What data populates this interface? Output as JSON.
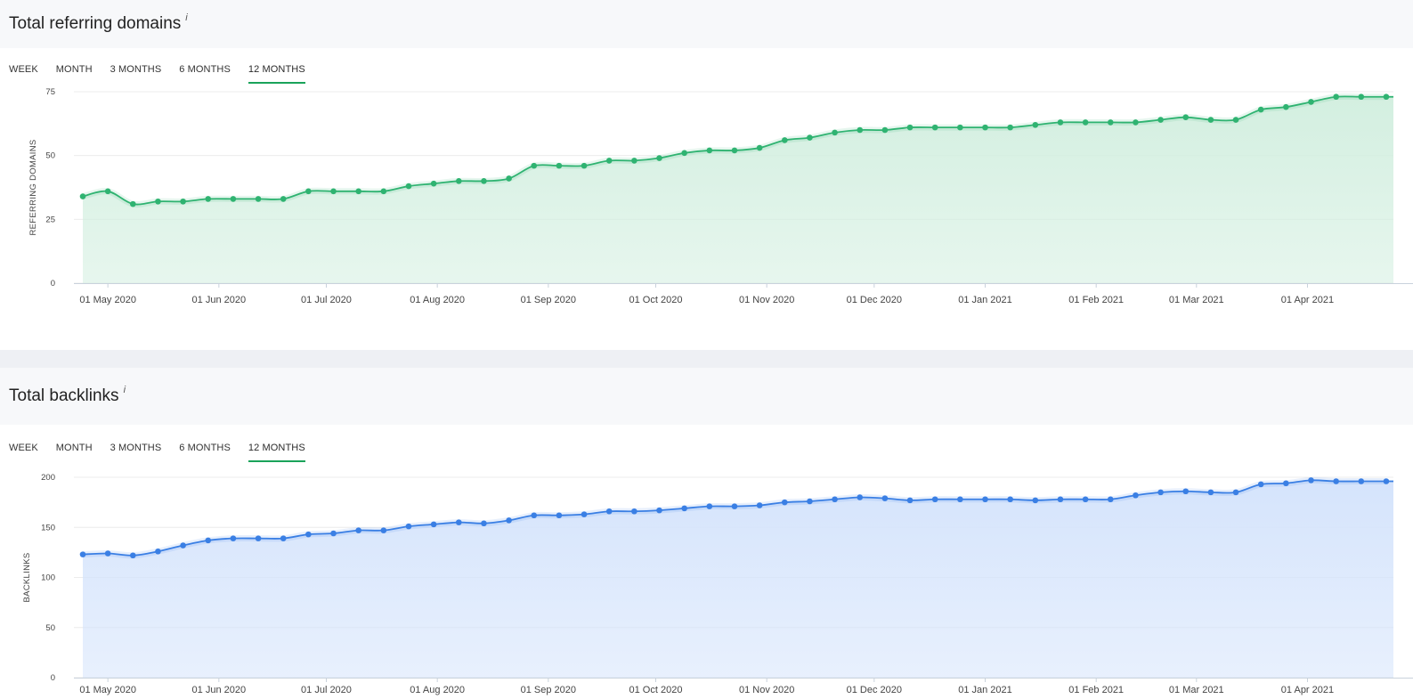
{
  "tabs": [
    "WEEK",
    "MONTH",
    "3 MONTHS",
    "6 MONTHS",
    "12 MONTHS"
  ],
  "active_tab_index": 4,
  "info_icon": "i",
  "colors": {
    "green": "#2fb371",
    "green_fill": "#d3efe0",
    "blue": "#3a7fe4",
    "blue_fill": "#d5e4fc",
    "tab_underline": "#1aa35a"
  },
  "chart_data": [
    {
      "type": "area",
      "title": "Total referring domains",
      "ylabel": "REFERRING DOMAINS",
      "xlabel": "",
      "ylim": [
        0,
        75
      ],
      "yticks": [
        0,
        25,
        50,
        75
      ],
      "x_tick_labels": [
        "01 May 2020",
        "01 Jun 2020",
        "01 Jul 2020",
        "01 Aug 2020",
        "01 Sep 2020",
        "01 Oct 2020",
        "01 Nov 2020",
        "01 Dec 2020",
        "01 Jan 2021",
        "01 Feb 2021",
        "01 Mar 2021",
        "01 Apr 2021"
      ],
      "x_tick_dates": [
        "2020-05-01",
        "2020-06-01",
        "2020-07-01",
        "2020-08-01",
        "2020-09-01",
        "2020-10-01",
        "2020-11-01",
        "2020-12-01",
        "2021-01-01",
        "2021-02-01",
        "2021-03-01",
        "2021-04-01"
      ],
      "x_range": [
        "2020-04-24",
        "2021-04-25"
      ],
      "x": [
        "2020-04-24",
        "2020-05-01",
        "2020-05-08",
        "2020-05-15",
        "2020-05-22",
        "2020-05-29",
        "2020-06-05",
        "2020-06-12",
        "2020-06-19",
        "2020-06-26",
        "2020-07-03",
        "2020-07-10",
        "2020-07-17",
        "2020-07-24",
        "2020-07-31",
        "2020-08-07",
        "2020-08-14",
        "2020-08-21",
        "2020-08-28",
        "2020-09-04",
        "2020-09-11",
        "2020-09-18",
        "2020-09-25",
        "2020-10-02",
        "2020-10-09",
        "2020-10-16",
        "2020-10-23",
        "2020-10-30",
        "2020-11-06",
        "2020-11-13",
        "2020-11-20",
        "2020-11-27",
        "2020-12-04",
        "2020-12-11",
        "2020-12-18",
        "2020-12-25",
        "2021-01-01",
        "2021-01-08",
        "2021-01-15",
        "2021-01-22",
        "2021-01-29",
        "2021-02-05",
        "2021-02-12",
        "2021-02-19",
        "2021-02-26",
        "2021-03-05",
        "2021-03-12",
        "2021-03-19",
        "2021-03-26",
        "2021-04-02",
        "2021-04-09",
        "2021-04-16",
        "2021-04-23"
      ],
      "series": [
        {
          "values": [
            34,
            36,
            31,
            32,
            32,
            33,
            33,
            33,
            33,
            36,
            36,
            36,
            36,
            38,
            39,
            40,
            40,
            41,
            46,
            46,
            46,
            48,
            48,
            49,
            51,
            52,
            52,
            53,
            56,
            57,
            59,
            60,
            60,
            61,
            61,
            61,
            61,
            61,
            62,
            63,
            63,
            63,
            63,
            64,
            65,
            64,
            64,
            68,
            69,
            71,
            73,
            73,
            73
          ]
        }
      ]
    },
    {
      "type": "area",
      "title": "Total backlinks",
      "ylabel": "BACKLINKS",
      "xlabel": "",
      "ylim": [
        0,
        200
      ],
      "yticks": [
        0,
        50,
        100,
        150,
        200
      ],
      "x_tick_labels": [
        "01 May 2020",
        "01 Jun 2020",
        "01 Jul 2020",
        "01 Aug 2020",
        "01 Sep 2020",
        "01 Oct 2020",
        "01 Nov 2020",
        "01 Dec 2020",
        "01 Jan 2021",
        "01 Feb 2021",
        "01 Mar 2021",
        "01 Apr 2021"
      ],
      "x_tick_dates": [
        "2020-05-01",
        "2020-06-01",
        "2020-07-01",
        "2020-08-01",
        "2020-09-01",
        "2020-10-01",
        "2020-11-01",
        "2020-12-01",
        "2021-01-01",
        "2021-02-01",
        "2021-03-01",
        "2021-04-01"
      ],
      "x_range": [
        "2020-04-24",
        "2021-04-25"
      ],
      "x": [
        "2020-04-24",
        "2020-05-01",
        "2020-05-08",
        "2020-05-15",
        "2020-05-22",
        "2020-05-29",
        "2020-06-05",
        "2020-06-12",
        "2020-06-19",
        "2020-06-26",
        "2020-07-03",
        "2020-07-10",
        "2020-07-17",
        "2020-07-24",
        "2020-07-31",
        "2020-08-07",
        "2020-08-14",
        "2020-08-21",
        "2020-08-28",
        "2020-09-04",
        "2020-09-11",
        "2020-09-18",
        "2020-09-25",
        "2020-10-02",
        "2020-10-09",
        "2020-10-16",
        "2020-10-23",
        "2020-10-30",
        "2020-11-06",
        "2020-11-13",
        "2020-11-20",
        "2020-11-27",
        "2020-12-04",
        "2020-12-11",
        "2020-12-18",
        "2020-12-25",
        "2021-01-01",
        "2021-01-08",
        "2021-01-15",
        "2021-01-22",
        "2021-01-29",
        "2021-02-05",
        "2021-02-12",
        "2021-02-19",
        "2021-02-26",
        "2021-03-05",
        "2021-03-12",
        "2021-03-19",
        "2021-03-26",
        "2021-04-02",
        "2021-04-09",
        "2021-04-16",
        "2021-04-23"
      ],
      "series": [
        {
          "values": [
            123,
            124,
            122,
            126,
            132,
            137,
            139,
            139,
            139,
            143,
            144,
            147,
            147,
            151,
            153,
            155,
            154,
            157,
            162,
            162,
            163,
            166,
            166,
            167,
            169,
            171,
            171,
            172,
            175,
            176,
            178,
            180,
            179,
            177,
            178,
            178,
            178,
            178,
            177,
            178,
            178,
            178,
            182,
            185,
            186,
            185,
            185,
            193,
            194,
            197,
            196,
            196,
            196
          ]
        }
      ]
    }
  ]
}
